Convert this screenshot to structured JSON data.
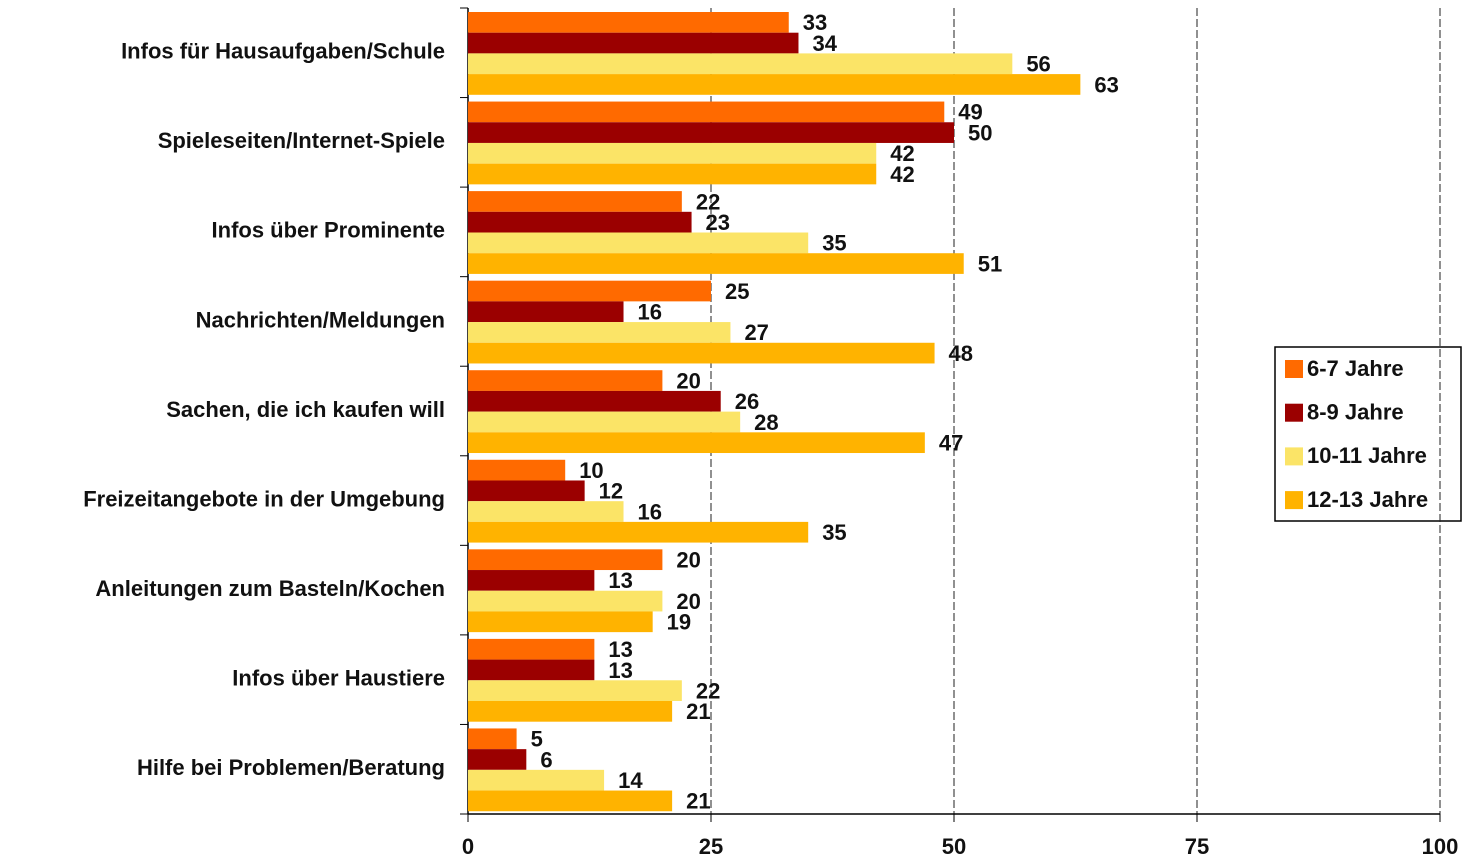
{
  "chart_data": {
    "type": "bar",
    "orientation": "horizontal",
    "categories": [
      "Infos für Hausaufgaben/Schule",
      "Spieleseiten/Internet-Spiele",
      "Infos über Prominente",
      "Nachrichten/Meldungen",
      "Sachen, die ich kaufen will",
      "Freizeitangebote in der Umgebung",
      "Anleitungen zum Basteln/Kochen",
      "Infos über Haustiere",
      "Hilfe bei Problemen/Beratung"
    ],
    "series": [
      {
        "name": "6-7 Jahre",
        "color": "#ff6a00",
        "values": [
          33,
          49,
          22,
          25,
          20,
          10,
          20,
          13,
          5
        ]
      },
      {
        "name": "8-9 Jahre",
        "color": "#9b0000",
        "values": [
          34,
          50,
          23,
          16,
          26,
          12,
          13,
          13,
          6
        ]
      },
      {
        "name": "10-11 Jahre",
        "color": "#fbe467",
        "values": [
          56,
          42,
          35,
          27,
          28,
          16,
          20,
          22,
          14
        ]
      },
      {
        "name": "12-13 Jahre",
        "color": "#ffb300",
        "values": [
          63,
          42,
          51,
          48,
          47,
          35,
          19,
          21,
          21
        ]
      }
    ],
    "xlim": [
      0,
      100
    ],
    "xticks": [
      0,
      25,
      50,
      75,
      100
    ],
    "grid": true,
    "legend": "right"
  }
}
